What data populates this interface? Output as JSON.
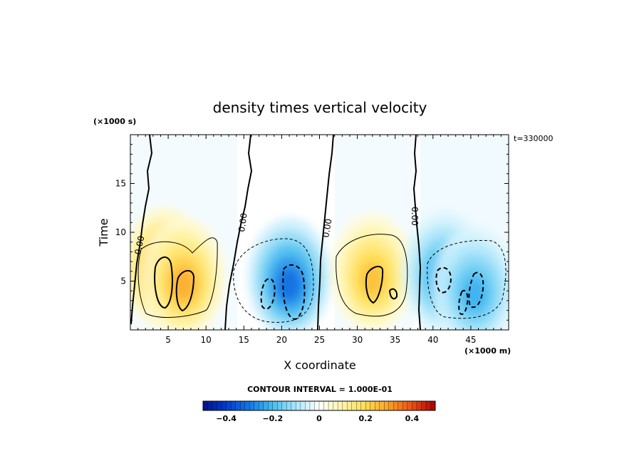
{
  "chart_data": {
    "type": "heatmap",
    "title": "density times vertical velocity",
    "xlabel": "X coordinate",
    "ylabel": "Time",
    "x_unit": "(×1000 m)",
    "y_unit": "(×1000 s)",
    "time_label": "t=330000",
    "xlim": [
      0,
      50
    ],
    "ylim": [
      0,
      20
    ],
    "x_ticks": [
      5,
      10,
      15,
      20,
      25,
      30,
      35,
      40,
      45
    ],
    "y_ticks": [
      5,
      10,
      15
    ],
    "contour_interval_text": "CONTOUR INTERVAL = 1.000E-01",
    "zero_contour_label": "0.00",
    "colorbar": {
      "range": [
        -0.5,
        0.5
      ],
      "ticks": [
        "−0.4",
        "−0.2",
        "0",
        "0.2",
        "0.4"
      ],
      "tick_values": [
        -0.4,
        -0.2,
        0,
        0.2,
        0.4
      ]
    },
    "features": [
      {
        "sign": "positive",
        "x": 4.5,
        "y": 5.5,
        "peak": 0.35
      },
      {
        "sign": "positive",
        "x": 7.0,
        "y": 4.5,
        "peak": 0.28
      },
      {
        "sign": "negative",
        "x": 21.0,
        "y": 4.5,
        "peak": -0.32
      },
      {
        "sign": "positive",
        "x": 32.0,
        "y": 5.0,
        "peak": 0.25
      },
      {
        "sign": "negative",
        "x": 41.5,
        "y": 5.0,
        "peak": -0.25
      },
      {
        "sign": "negative",
        "x": 45.5,
        "y": 3.5,
        "peak": -0.22
      }
    ],
    "zero_lines_x": [
      2.5,
      15.5,
      25.5,
      37.5
    ]
  }
}
